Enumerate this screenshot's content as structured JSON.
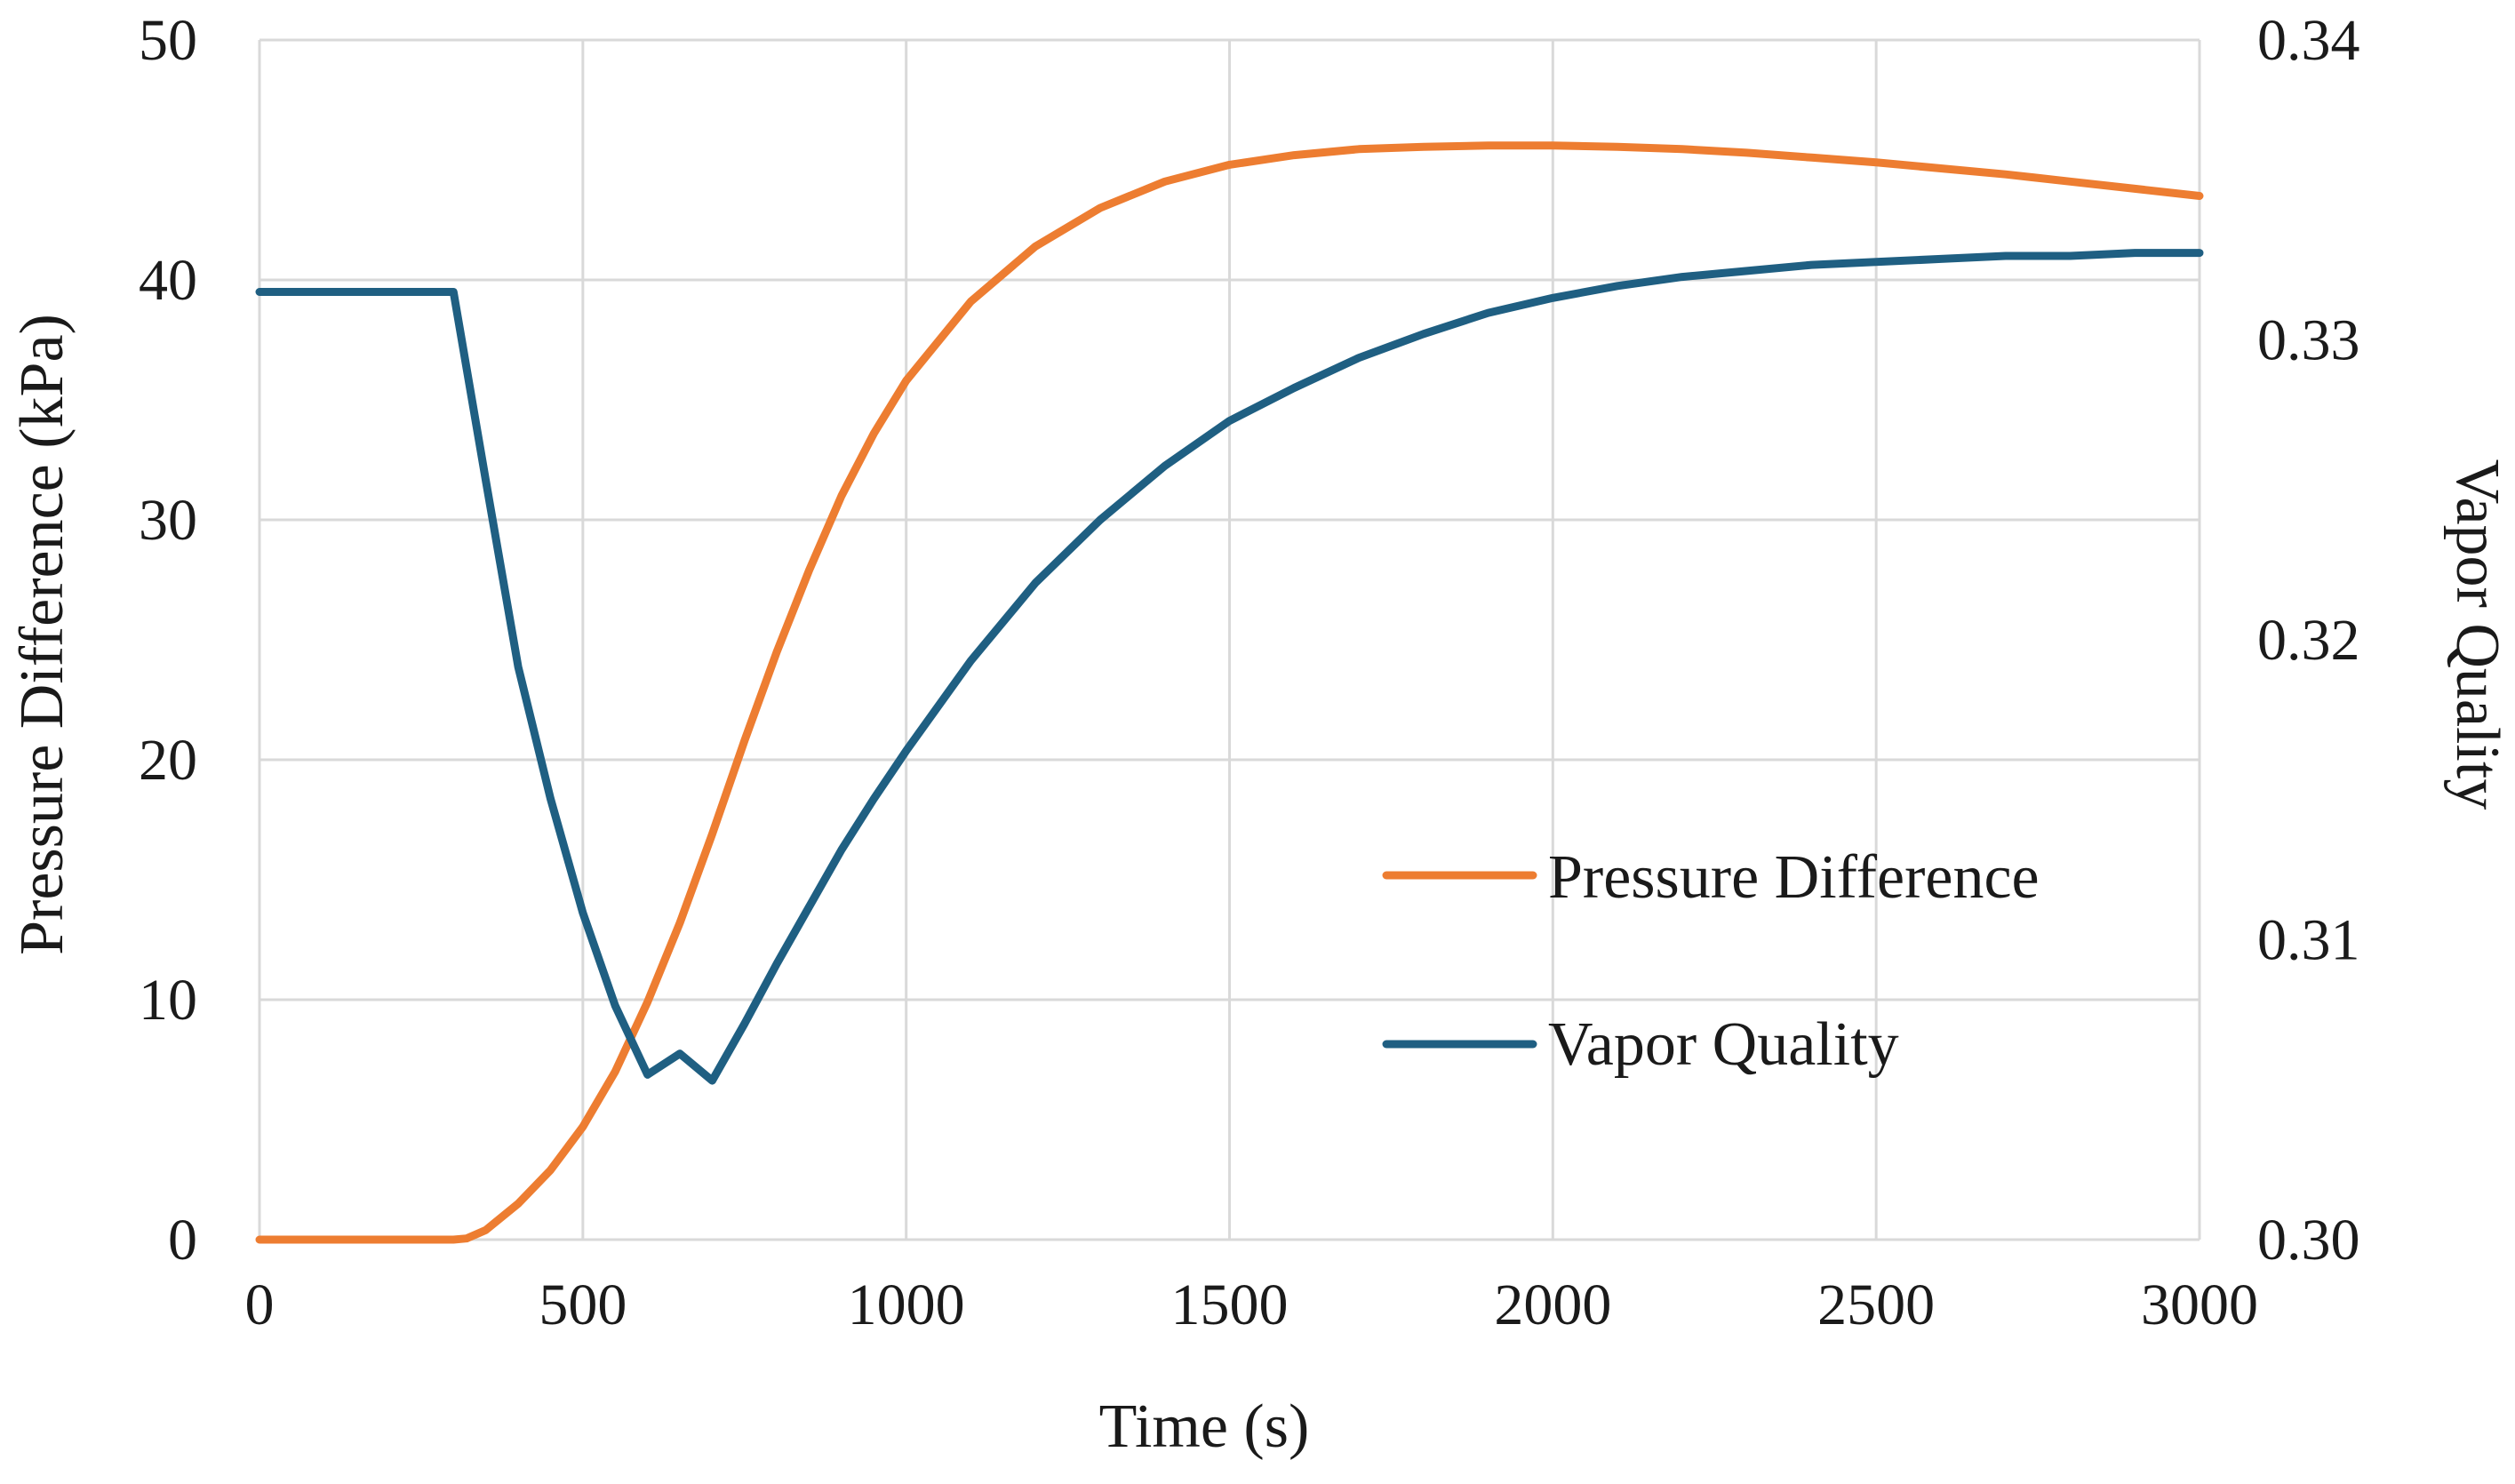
{
  "chart_data": {
    "type": "line",
    "xlabel": "Time (s)",
    "ylabel": "Pressure Difference (kPa)",
    "y2label": "Vapor Quality",
    "xlim": [
      0,
      3000
    ],
    "ylim": [
      0,
      50
    ],
    "y2lim": [
      0.3,
      0.34
    ],
    "xticks": [
      0,
      500,
      1000,
      1500,
      2000,
      2500,
      3000
    ],
    "yticks": [
      0,
      10,
      20,
      30,
      40,
      50
    ],
    "y2ticks": [
      0.3,
      0.31,
      0.32,
      0.33,
      0.34
    ],
    "xtick_labels": [
      "0",
      "500",
      "1000",
      "1500",
      "2000",
      "2500",
      "3000"
    ],
    "ytick_labels": [
      "0",
      "10",
      "20",
      "30",
      "40",
      "50"
    ],
    "y2tick_labels": [
      "0.30",
      "0.31",
      "0.32",
      "0.33",
      "0.34"
    ],
    "grid": true,
    "legend_position": "right-middle",
    "series": [
      {
        "name": "Pressure Difference",
        "axis": "left",
        "color": "#ED7D31",
        "x": [
          0,
          100,
          200,
          300,
          320,
          350,
          400,
          450,
          500,
          550,
          600,
          650,
          700,
          750,
          800,
          850,
          900,
          950,
          1000,
          1100,
          1200,
          1300,
          1400,
          1500,
          1600,
          1700,
          1800,
          1900,
          2000,
          2100,
          2200,
          2300,
          2400,
          2500,
          2600,
          2700,
          2800,
          2900,
          3000
        ],
        "y": [
          0,
          0,
          0,
          0,
          0.05,
          0.4,
          1.5,
          2.9,
          4.7,
          7.0,
          9.9,
          13.2,
          16.9,
          20.8,
          24.5,
          27.9,
          31.0,
          33.6,
          35.8,
          39.1,
          41.4,
          43.0,
          44.1,
          44.8,
          45.2,
          45.45,
          45.55,
          45.6,
          45.6,
          45.55,
          45.45,
          45.3,
          45.1,
          44.9,
          44.65,
          44.4,
          44.1,
          43.8,
          43.5
        ]
      },
      {
        "name": "Vapor Quality",
        "axis": "right",
        "color": "#1F5F82",
        "x": [
          0,
          100,
          200,
          300,
          350,
          400,
          450,
          500,
          550,
          600,
          650,
          700,
          750,
          800,
          850,
          900,
          950,
          1000,
          1100,
          1200,
          1300,
          1400,
          1500,
          1600,
          1700,
          1800,
          1900,
          2000,
          2100,
          2200,
          2300,
          2400,
          2500,
          2600,
          2700,
          2800,
          2900,
          3000
        ],
        "y": [
          0.3316,
          0.3316,
          0.3316,
          0.3316,
          0.3253,
          0.3191,
          0.3147,
          0.3109,
          0.3078,
          0.3055,
          0.3062,
          0.3053,
          0.3072,
          0.3092,
          0.3111,
          0.313,
          0.3147,
          0.3163,
          0.3193,
          0.3219,
          0.324,
          0.3258,
          0.3273,
          0.3284,
          0.3294,
          0.3302,
          0.3309,
          0.3314,
          0.3318,
          0.3321,
          0.3323,
          0.3325,
          0.3326,
          0.3327,
          0.3328,
          0.3328,
          0.3329,
          0.3329
        ]
      }
    ]
  }
}
